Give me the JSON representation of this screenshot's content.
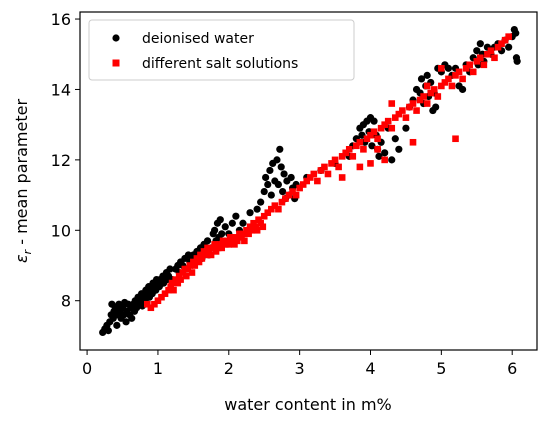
{
  "chart_data": {
    "type": "scatter",
    "xlabel": "water content in m%",
    "ylabel": "ε_r - mean parameter",
    "ylabel_main": "ε",
    "ylabel_sub": "r",
    "ylabel_rest": " - mean parameter",
    "xlim": [
      -0.1,
      6.35
    ],
    "ylim": [
      6.6,
      16.2
    ],
    "xticks": [
      0,
      1,
      2,
      3,
      4,
      5,
      6
    ],
    "yticks": [
      8,
      10,
      12,
      14,
      16
    ],
    "grid": false,
    "legend_position": "top-left",
    "series": [
      {
        "name": "deionised water",
        "marker": "circle",
        "color": "#000000",
        "points": [
          [
            0.22,
            7.1
          ],
          [
            0.25,
            7.2
          ],
          [
            0.28,
            7.3
          ],
          [
            0.3,
            7.15
          ],
          [
            0.32,
            7.4
          ],
          [
            0.34,
            7.6
          ],
          [
            0.35,
            7.9
          ],
          [
            0.37,
            7.5
          ],
          [
            0.38,
            7.7
          ],
          [
            0.4,
            7.8
          ],
          [
            0.42,
            7.3
          ],
          [
            0.43,
            7.6
          ],
          [
            0.45,
            7.9
          ],
          [
            0.46,
            7.7
          ],
          [
            0.48,
            7.5
          ],
          [
            0.5,
            7.8
          ],
          [
            0.52,
            7.6
          ],
          [
            0.53,
            7.95
          ],
          [
            0.55,
            7.4
          ],
          [
            0.56,
            7.7
          ],
          [
            0.58,
            7.9
          ],
          [
            0.6,
            7.6
          ],
          [
            0.62,
            7.8
          ],
          [
            0.63,
            7.5
          ],
          [
            0.65,
            7.9
          ],
          [
            0.67,
            7.7
          ],
          [
            0.68,
            8.0
          ],
          [
            0.7,
            7.8
          ],
          [
            0.72,
            8.1
          ],
          [
            0.74,
            7.9
          ],
          [
            0.75,
            8.0
          ],
          [
            0.77,
            8.2
          ],
          [
            0.78,
            7.85
          ],
          [
            0.8,
            8.1
          ],
          [
            0.82,
            8.0
          ],
          [
            0.83,
            8.3
          ],
          [
            0.85,
            8.2
          ],
          [
            0.87,
            8.4
          ],
          [
            0.88,
            8.1
          ],
          [
            0.9,
            8.3
          ],
          [
            0.92,
            8.2
          ],
          [
            0.93,
            8.5
          ],
          [
            0.95,
            8.4
          ],
          [
            0.97,
            8.3
          ],
          [
            0.98,
            8.6
          ],
          [
            1.0,
            8.5
          ],
          [
            1.02,
            8.4
          ],
          [
            1.03,
            8.6
          ],
          [
            1.05,
            8.55
          ],
          [
            1.07,
            8.7
          ],
          [
            1.08,
            8.5
          ],
          [
            1.1,
            8.6
          ],
          [
            1.12,
            8.8
          ],
          [
            1.13,
            8.6
          ],
          [
            1.15,
            8.7
          ],
          [
            1.17,
            8.9
          ],
          [
            1.2,
            8.6
          ],
          [
            1.25,
            8.9
          ],
          [
            1.28,
            9.0
          ],
          [
            1.3,
            8.8
          ],
          [
            1.32,
            9.1
          ],
          [
            1.35,
            9.0
          ],
          [
            1.38,
            9.2
          ],
          [
            1.4,
            8.9
          ],
          [
            1.43,
            9.3
          ],
          [
            1.45,
            9.1
          ],
          [
            1.48,
            9.2
          ],
          [
            1.5,
            9.3
          ],
          [
            1.52,
            9.1
          ],
          [
            1.55,
            9.4
          ],
          [
            1.58,
            9.3
          ],
          [
            1.6,
            9.5
          ],
          [
            1.62,
            9.2
          ],
          [
            1.65,
            9.6
          ],
          [
            1.68,
            9.4
          ],
          [
            1.7,
            9.7
          ],
          [
            1.72,
            9.3
          ],
          [
            1.75,
            9.5
          ],
          [
            1.78,
            9.9
          ],
          [
            1.8,
            10.0
          ],
          [
            1.82,
            9.7
          ],
          [
            1.84,
            10.2
          ],
          [
            1.86,
            9.8
          ],
          [
            1.88,
            10.3
          ],
          [
            1.9,
            9.9
          ],
          [
            1.95,
            10.1
          ],
          [
            2.0,
            9.9
          ],
          [
            2.05,
            10.2
          ],
          [
            2.1,
            10.4
          ],
          [
            2.15,
            10.0
          ],
          [
            2.2,
            10.2
          ],
          [
            2.3,
            10.5
          ],
          [
            2.4,
            10.6
          ],
          [
            2.45,
            10.8
          ],
          [
            2.5,
            11.1
          ],
          [
            2.52,
            11.5
          ],
          [
            2.55,
            11.3
          ],
          [
            2.58,
            11.7
          ],
          [
            2.6,
            11.0
          ],
          [
            2.62,
            11.9
          ],
          [
            2.65,
            11.4
          ],
          [
            2.68,
            12.0
          ],
          [
            2.7,
            11.3
          ],
          [
            2.72,
            12.3
          ],
          [
            2.74,
            11.8
          ],
          [
            2.76,
            11.1
          ],
          [
            2.78,
            11.6
          ],
          [
            2.8,
            10.9
          ],
          [
            2.82,
            11.4
          ],
          [
            2.85,
            11.0
          ],
          [
            2.88,
            11.5
          ],
          [
            2.9,
            11.2
          ],
          [
            2.93,
            10.9
          ],
          [
            2.95,
            11.3
          ],
          [
            3.1,
            11.5
          ],
          [
            3.3,
            11.7
          ],
          [
            3.5,
            11.9
          ],
          [
            3.7,
            12.1
          ],
          [
            3.75,
            12.4
          ],
          [
            3.8,
            12.6
          ],
          [
            3.85,
            12.9
          ],
          [
            3.88,
            12.7
          ],
          [
            3.9,
            13.0
          ],
          [
            3.92,
            12.5
          ],
          [
            3.95,
            13.1
          ],
          [
            3.98,
            12.8
          ],
          [
            4.0,
            13.2
          ],
          [
            4.02,
            12.4
          ],
          [
            4.05,
            13.1
          ],
          [
            4.08,
            12.7
          ],
          [
            4.1,
            12.3
          ],
          [
            4.12,
            12.1
          ],
          [
            4.15,
            12.5
          ],
          [
            4.2,
            12.2
          ],
          [
            4.25,
            12.9
          ],
          [
            4.3,
            12.0
          ],
          [
            4.35,
            12.6
          ],
          [
            4.4,
            12.3
          ],
          [
            4.5,
            12.9
          ],
          [
            4.55,
            13.5
          ],
          [
            4.6,
            13.7
          ],
          [
            4.65,
            14.0
          ],
          [
            4.7,
            13.9
          ],
          [
            4.72,
            14.3
          ],
          [
            4.75,
            13.6
          ],
          [
            4.78,
            14.1
          ],
          [
            4.8,
            14.4
          ],
          [
            4.82,
            13.8
          ],
          [
            4.85,
            14.2
          ],
          [
            4.88,
            13.4
          ],
          [
            4.9,
            13.9
          ],
          [
            4.92,
            13.5
          ],
          [
            4.95,
            14.6
          ],
          [
            5.0,
            14.5
          ],
          [
            5.05,
            14.7
          ],
          [
            5.1,
            14.6
          ],
          [
            5.15,
            14.4
          ],
          [
            5.2,
            14.6
          ],
          [
            5.25,
            14.1
          ],
          [
            5.3,
            14.0
          ],
          [
            5.35,
            14.7
          ],
          [
            5.4,
            14.5
          ],
          [
            5.45,
            14.9
          ],
          [
            5.5,
            15.1
          ],
          [
            5.52,
            14.7
          ],
          [
            5.55,
            15.3
          ],
          [
            5.58,
            15.0
          ],
          [
            5.6,
            14.8
          ],
          [
            5.65,
            15.2
          ],
          [
            5.7,
            15.0
          ],
          [
            5.75,
            15.2
          ],
          [
            5.8,
            15.3
          ],
          [
            5.85,
            15.1
          ],
          [
            5.9,
            15.4
          ],
          [
            5.95,
            15.2
          ],
          [
            6.0,
            15.5
          ],
          [
            6.03,
            15.7
          ],
          [
            6.05,
            15.6
          ],
          [
            6.06,
            14.9
          ],
          [
            6.07,
            14.8
          ]
        ]
      },
      {
        "name": "different salt solutions",
        "marker": "square",
        "color": "#ff0000",
        "points": [
          [
            0.85,
            7.9
          ],
          [
            0.9,
            7.8
          ],
          [
            0.95,
            7.9
          ],
          [
            1.0,
            8.0
          ],
          [
            1.05,
            8.1
          ],
          [
            1.1,
            8.2
          ],
          [
            1.15,
            8.3
          ],
          [
            1.18,
            8.4
          ],
          [
            1.2,
            8.5
          ],
          [
            1.22,
            8.3
          ],
          [
            1.25,
            8.6
          ],
          [
            1.28,
            8.5
          ],
          [
            1.3,
            8.7
          ],
          [
            1.32,
            8.6
          ],
          [
            1.35,
            8.8
          ],
          [
            1.38,
            8.9
          ],
          [
            1.4,
            8.7
          ],
          [
            1.42,
            8.9
          ],
          [
            1.45,
            9.0
          ],
          [
            1.48,
            8.8
          ],
          [
            1.5,
            9.1
          ],
          [
            1.52,
            9.0
          ],
          [
            1.55,
            9.2
          ],
          [
            1.58,
            9.1
          ],
          [
            1.6,
            9.3
          ],
          [
            1.62,
            9.2
          ],
          [
            1.65,
            9.4
          ],
          [
            1.68,
            9.3
          ],
          [
            1.7,
            9.5
          ],
          [
            1.72,
            9.4
          ],
          [
            1.75,
            9.3
          ],
          [
            1.78,
            9.5
          ],
          [
            1.8,
            9.6
          ],
          [
            1.82,
            9.4
          ],
          [
            1.85,
            9.5
          ],
          [
            1.88,
            9.6
          ],
          [
            1.9,
            9.5
          ],
          [
            1.92,
            9.7
          ],
          [
            1.95,
            9.6
          ],
          [
            1.98,
            9.7
          ],
          [
            2.0,
            9.6
          ],
          [
            2.02,
            9.8
          ],
          [
            2.05,
            9.7
          ],
          [
            2.08,
            9.6
          ],
          [
            2.1,
            9.8
          ],
          [
            2.12,
            9.7
          ],
          [
            2.15,
            9.9
          ],
          [
            2.18,
            9.8
          ],
          [
            2.2,
            9.9
          ],
          [
            2.22,
            9.7
          ],
          [
            2.25,
            10.0
          ],
          [
            2.28,
            9.9
          ],
          [
            2.3,
            10.1
          ],
          [
            2.32,
            10.0
          ],
          [
            2.35,
            10.2
          ],
          [
            2.38,
            10.1
          ],
          [
            2.4,
            10.0
          ],
          [
            2.42,
            10.3
          ],
          [
            2.45,
            10.2
          ],
          [
            2.48,
            10.1
          ],
          [
            2.5,
            10.4
          ],
          [
            2.55,
            10.5
          ],
          [
            2.6,
            10.6
          ],
          [
            2.65,
            10.7
          ],
          [
            2.7,
            10.6
          ],
          [
            2.75,
            10.8
          ],
          [
            2.8,
            10.9
          ],
          [
            2.85,
            11.0
          ],
          [
            2.9,
            11.1
          ],
          [
            2.95,
            11.0
          ],
          [
            3.0,
            11.2
          ],
          [
            3.05,
            11.3
          ],
          [
            3.1,
            11.4
          ],
          [
            3.15,
            11.5
          ],
          [
            3.2,
            11.6
          ],
          [
            3.25,
            11.4
          ],
          [
            3.3,
            11.7
          ],
          [
            3.35,
            11.8
          ],
          [
            3.4,
            11.6
          ],
          [
            3.45,
            11.9
          ],
          [
            3.5,
            12.0
          ],
          [
            3.55,
            11.8
          ],
          [
            3.6,
            12.1
          ],
          [
            3.65,
            12.2
          ],
          [
            3.7,
            12.3
          ],
          [
            3.75,
            12.1
          ],
          [
            3.8,
            12.4
          ],
          [
            3.85,
            12.5
          ],
          [
            3.9,
            12.3
          ],
          [
            3.95,
            12.6
          ],
          [
            4.0,
            12.7
          ],
          [
            4.05,
            12.8
          ],
          [
            4.1,
            12.6
          ],
          [
            4.15,
            12.9
          ],
          [
            4.2,
            13.0
          ],
          [
            4.25,
            13.1
          ],
          [
            4.3,
            12.9
          ],
          [
            4.35,
            13.2
          ],
          [
            4.4,
            13.3
          ],
          [
            4.45,
            13.4
          ],
          [
            4.5,
            13.2
          ],
          [
            4.55,
            13.5
          ],
          [
            4.6,
            13.6
          ],
          [
            4.65,
            13.4
          ],
          [
            4.7,
            13.7
          ],
          [
            4.75,
            13.8
          ],
          [
            4.8,
            13.6
          ],
          [
            4.85,
            13.9
          ],
          [
            4.9,
            14.0
          ],
          [
            4.95,
            13.8
          ],
          [
            5.0,
            14.1
          ],
          [
            5.05,
            14.2
          ],
          [
            5.1,
            14.3
          ],
          [
            5.15,
            14.1
          ],
          [
            5.2,
            14.4
          ],
          [
            5.25,
            14.5
          ],
          [
            5.3,
            14.3
          ],
          [
            5.35,
            14.6
          ],
          [
            5.4,
            14.7
          ],
          [
            5.45,
            14.5
          ],
          [
            5.5,
            14.8
          ],
          [
            5.55,
            14.9
          ],
          [
            5.6,
            14.7
          ],
          [
            5.65,
            15.0
          ],
          [
            5.7,
            15.1
          ],
          [
            5.75,
            14.9
          ],
          [
            5.8,
            15.2
          ],
          [
            5.85,
            15.3
          ],
          [
            5.9,
            15.4
          ],
          [
            5.95,
            15.5
          ],
          [
            4.2,
            12.0
          ],
          [
            4.6,
            12.5
          ],
          [
            5.2,
            12.6
          ],
          [
            4.3,
            13.6
          ],
          [
            3.85,
            11.8
          ],
          [
            4.0,
            11.9
          ],
          [
            4.1,
            12.3
          ],
          [
            3.6,
            11.5
          ],
          [
            5.0,
            14.6
          ],
          [
            4.8,
            14.1
          ]
        ]
      }
    ]
  }
}
